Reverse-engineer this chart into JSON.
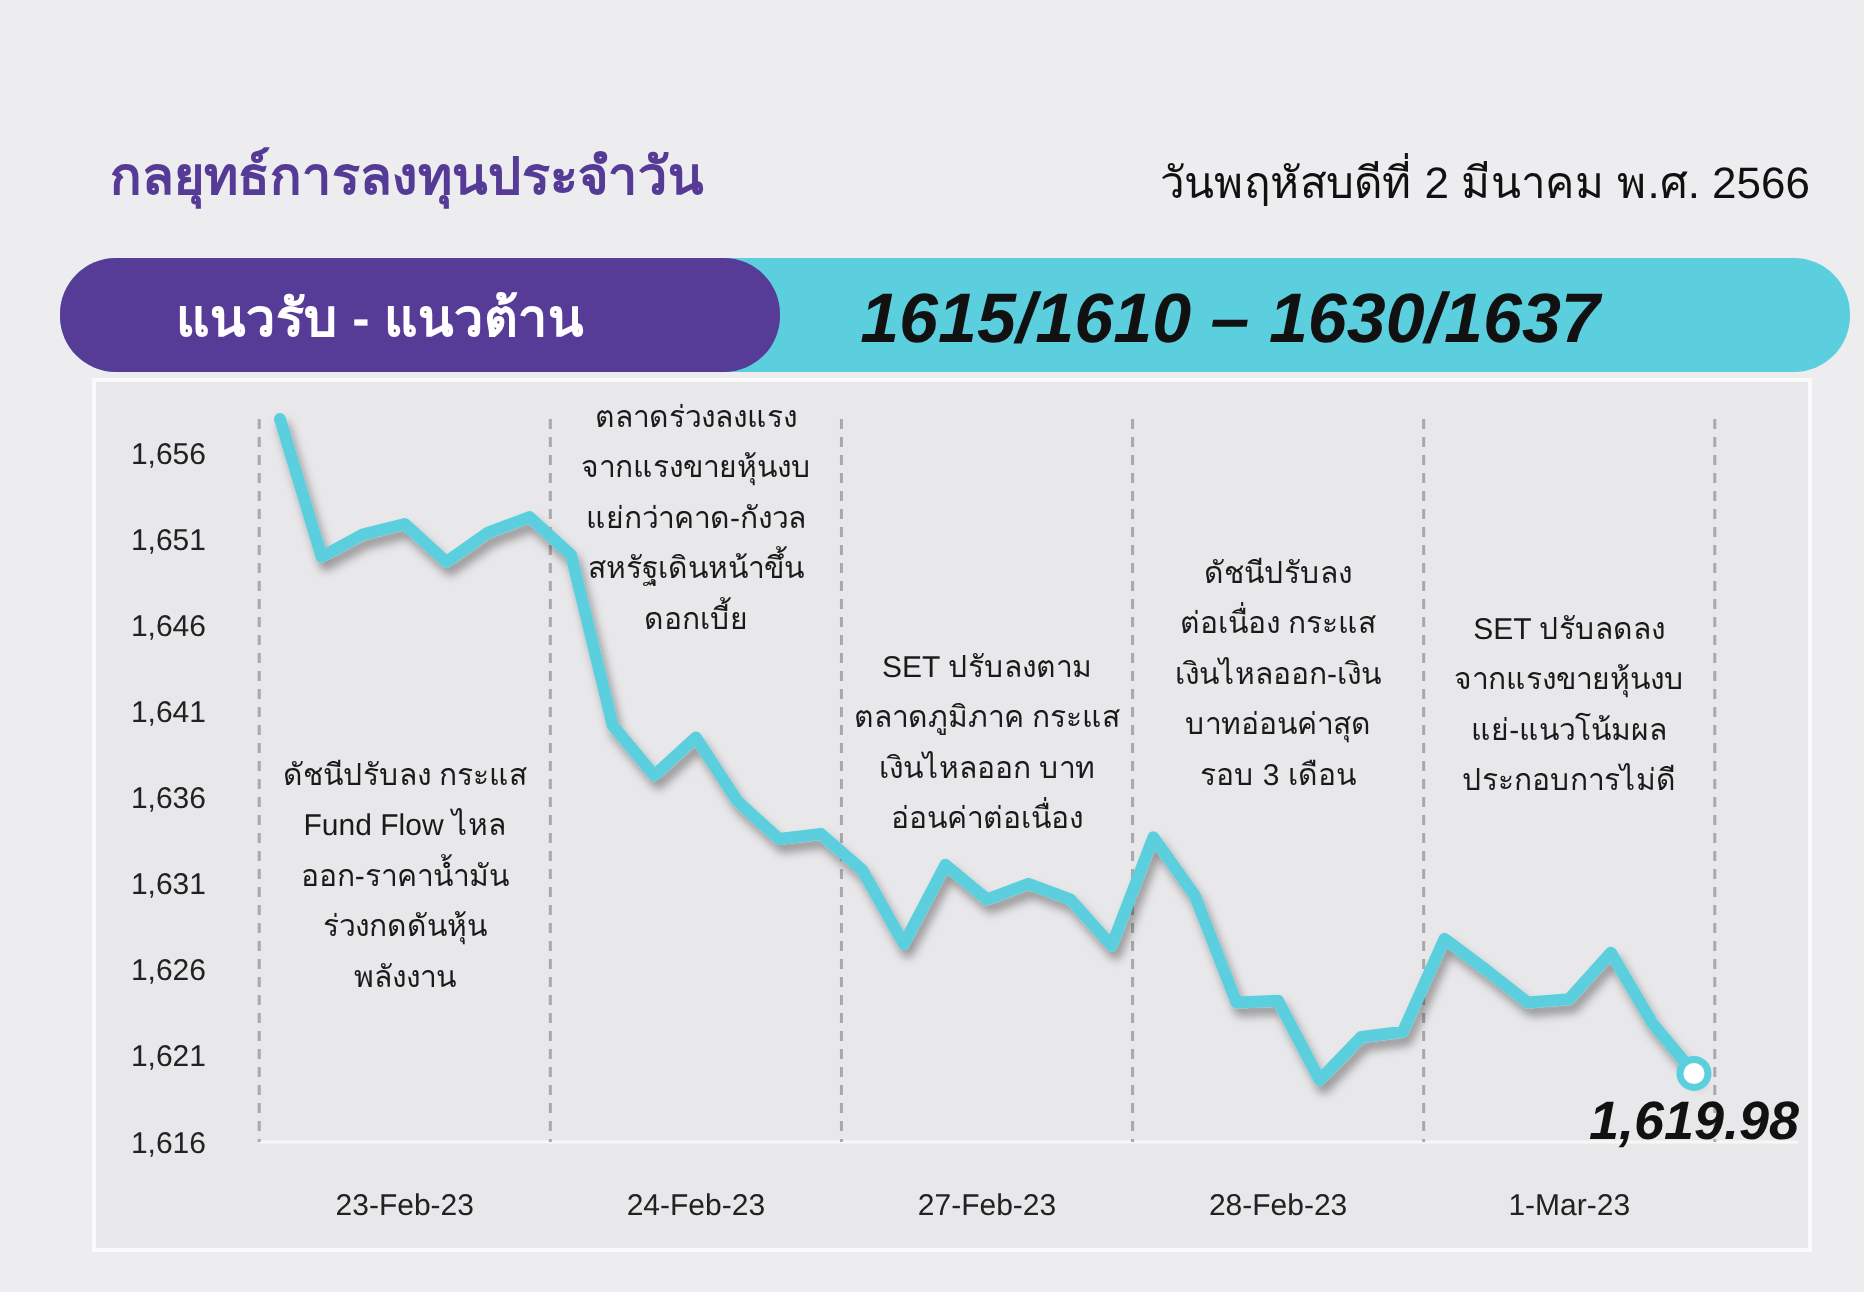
{
  "chart_data": {
    "type": "line",
    "title": "กลยุทธ์การลงทุนประจำวัน",
    "subtitle": "วันพฤหัสบดีที่ 2 มีนาคม พ.ศ. 2566",
    "annotations": [
      "แนวรับ - แนวต้าน",
      "1615/1610 – 1630/1637",
      "ดัชนีปรับลง กระแส\nFund Flow ไหล\nออก-ราคาน้ำมัน\nร่วงกดดันหุ้น\nพลังงาน",
      "ตลาดร่วงลงแรง\nจากแรงขายหุ้นงบ\nแย่กว่าคาด-กังวล\nสหรัฐเดินหน้าขึ้น\nดอกเบี้ย",
      "SET ปรับลงตาม\nตลาดภูมิภาค กระแส\nเงินไหลออก บาท\nอ่อนค่าต่อเนื่อง",
      "ดัชนีปรับลง\nต่อเนื่อง กระแส\nเงินไหลออก-เงิน\nบาทอ่อนค่าสุด\nรอบ 3 เดือน",
      "SET ปรับลดลง\nจากแรงขายหุ้นงบ\nแย่-แนวโน้มผล\nประกอบการไม่ดี"
    ],
    "categories": [
      null,
      null,
      null,
      "23-Feb-23",
      null,
      null,
      null,
      null,
      null,
      null,
      "24-Feb-23",
      null,
      null,
      null,
      null,
      null,
      null,
      "27-Feb-23",
      null,
      null,
      null,
      null,
      null,
      null,
      "28-Feb-23",
      null,
      null,
      null,
      null,
      null,
      null,
      "1-Mar-23",
      null,
      null,
      null
    ],
    "ylim": [
      1616,
      1658
    ],
    "yticks": [
      {
        "value": 1616,
        "label": "1,616"
      },
      {
        "value": 1621,
        "label": "1,621"
      },
      {
        "value": 1626,
        "label": "1,626"
      },
      {
        "value": 1631,
        "label": "1,631"
      },
      {
        "value": 1636,
        "label": "1,636"
      },
      {
        "value": 1641,
        "label": "1,641"
      },
      {
        "value": 1646,
        "label": "1,646"
      },
      {
        "value": 1651,
        "label": "1,651"
      },
      {
        "value": 1656,
        "label": "1,656"
      }
    ],
    "grid": "x",
    "series": [
      {
        "color": "#5ccfdf",
        "values": [
          1658,
          1650.0,
          1651.3,
          1651.9,
          1649.7,
          1651.4,
          1652.3,
          1650.1,
          1640.2,
          1637.3,
          1639.5,
          1635.8,
          1633.6,
          1633.9,
          1631.8,
          1627.5,
          1632.1,
          1630.1,
          1631.0,
          1630.1,
          1627.4,
          1633.7,
          1630.3,
          1624.1,
          1624.2,
          1619.6,
          1622.1,
          1622.4,
          1627.8,
          1626.0,
          1624.1,
          1624.3,
          1627.0,
          1622.9,
          1620.0
        ]
      },
      {
        "type": "scatter",
        "color": "#5ccfdf",
        "marker": "circle",
        "values": [
          null,
          null,
          null,
          null,
          null,
          null,
          null,
          null,
          null,
          null,
          null,
          null,
          null,
          null,
          null,
          null,
          null,
          null,
          null,
          null,
          null,
          null,
          null,
          null,
          null,
          null,
          null,
          null,
          null,
          null,
          null,
          null,
          null,
          null,
          1619.98
        ],
        "value_labels": [
          null,
          null,
          null,
          null,
          null,
          null,
          null,
          null,
          null,
          null,
          null,
          null,
          null,
          null,
          null,
          null,
          null,
          null,
          null,
          null,
          null,
          null,
          null,
          null,
          null,
          null,
          null,
          null,
          null,
          null,
          null,
          null,
          null,
          null,
          "1,619.98"
        ]
      }
    ]
  }
}
